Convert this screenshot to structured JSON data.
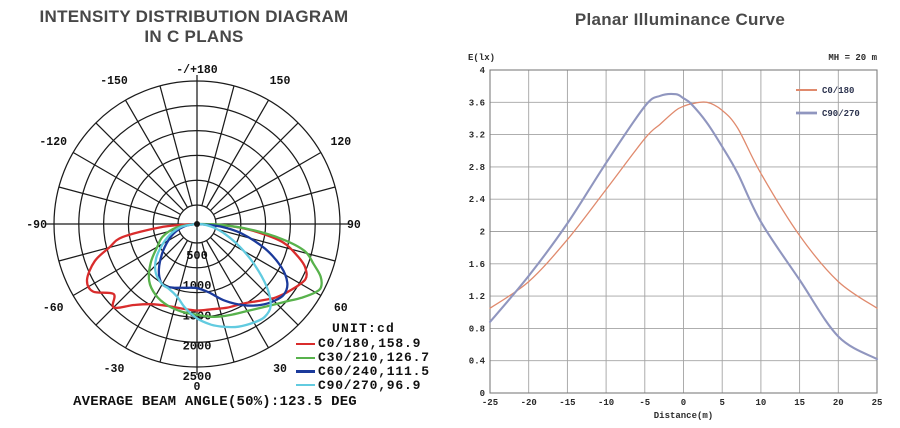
{
  "chart_data": [
    {
      "type": "polar-line",
      "title_line1": "INTENSITY DISTRIBUTION DIAGRAM",
      "title_line2": "IN C PLANS",
      "unit_label": "UNIT:cd",
      "footer": "AVERAGE BEAM ANGLE(50%):123.5 DEG",
      "radial_unit": "cd",
      "ring_values": [
        500,
        1000,
        1500,
        2000,
        2500
      ],
      "angle_labels": [
        {
          "a": 180,
          "t": "-/+180"
        },
        {
          "a": -150,
          "t": "-150"
        },
        {
          "a": 150,
          "t": "150"
        },
        {
          "a": -120,
          "t": "-120"
        },
        {
          "a": 120,
          "t": "120"
        },
        {
          "a": -90,
          "t": "-90"
        },
        {
          "a": 90,
          "t": "90"
        },
        {
          "a": -60,
          "t": "-60"
        },
        {
          "a": 60,
          "t": "60"
        },
        {
          "a": -30,
          "t": "-30"
        },
        {
          "a": 30,
          "t": "30"
        },
        {
          "a": 0,
          "t": "0"
        }
      ],
      "series": [
        {
          "name": "C0/180",
          "beam_angle_deg": 158.9,
          "label": "C0/180,158.9",
          "color": "#d92c2c",
          "points": [
            [
              -90,
              30
            ],
            [
              -85,
              600
            ],
            [
              -80,
              1250
            ],
            [
              -75,
              1500
            ],
            [
              -70,
              1800
            ],
            [
              -63,
              2040
            ],
            [
              -57,
              2050
            ],
            [
              -50,
              1800
            ],
            [
              -45,
              1950
            ],
            [
              -38,
              1700
            ],
            [
              -30,
              1530
            ],
            [
              -20,
              1440
            ],
            [
              -10,
              1420
            ],
            [
              0,
              1430
            ],
            [
              10,
              1430
            ],
            [
              20,
              1470
            ],
            [
              30,
              1520
            ],
            [
              40,
              1650
            ],
            [
              47,
              1780
            ],
            [
              55,
              1900
            ],
            [
              63,
              2010
            ],
            [
              68,
              1930
            ],
            [
              72,
              1760
            ],
            [
              78,
              1450
            ],
            [
              83,
              950
            ],
            [
              87,
              500
            ],
            [
              90,
              30
            ]
          ]
        },
        {
          "name": "C30/210",
          "beam_angle_deg": 126.7,
          "label": "C30/210,126.7",
          "color": "#58b24c",
          "points": [
            [
              -90,
              20
            ],
            [
              -80,
              350
            ],
            [
              -70,
              600
            ],
            [
              -60,
              760
            ],
            [
              -50,
              1000
            ],
            [
              -40,
              1230
            ],
            [
              -30,
              1360
            ],
            [
              -20,
              1430
            ],
            [
              -10,
              1470
            ],
            [
              0,
              1500
            ],
            [
              10,
              1560
            ],
            [
              20,
              1600
            ],
            [
              30,
              1660
            ],
            [
              40,
              1780
            ],
            [
              48,
              1930
            ],
            [
              55,
              2120
            ],
            [
              60,
              2260
            ],
            [
              63,
              2300
            ],
            [
              67,
              2220
            ],
            [
              71,
              2040
            ],
            [
              76,
              1830
            ],
            [
              80,
              1420
            ],
            [
              84,
              900
            ],
            [
              88,
              400
            ],
            [
              90,
              30
            ]
          ]
        },
        {
          "name": "C60/240",
          "beam_angle_deg": 111.5,
          "label": "C60/240,111.5",
          "color": "#1b3a9b",
          "points": [
            [
              -90,
              20
            ],
            [
              -80,
              200
            ],
            [
              -70,
              380
            ],
            [
              -60,
              550
            ],
            [
              -50,
              750
            ],
            [
              -40,
              980
            ],
            [
              -32,
              1130
            ],
            [
              -27,
              1155
            ],
            [
              -20,
              1120
            ],
            [
              -10,
              1070
            ],
            [
              0,
              1060
            ],
            [
              10,
              1150
            ],
            [
              20,
              1350
            ],
            [
              30,
              1550
            ],
            [
              38,
              1700
            ],
            [
              45,
              1800
            ],
            [
              51,
              1850
            ],
            [
              57,
              1780
            ],
            [
              63,
              1560
            ],
            [
              70,
              1200
            ],
            [
              78,
              750
            ],
            [
              84,
              380
            ],
            [
              90,
              20
            ]
          ]
        },
        {
          "name": "C90/270",
          "beam_angle_deg": 96.9,
          "label": "C90/270,96.9",
          "color": "#62cbe0",
          "points": [
            [
              -90,
              20
            ],
            [
              -80,
              250
            ],
            [
              -70,
              450
            ],
            [
              -60,
              650
            ],
            [
              -50,
              880
            ],
            [
              -40,
              1060
            ],
            [
              -30,
              1150
            ],
            [
              -24,
              1165
            ],
            [
              -15,
              1250
            ],
            [
              -8,
              1400
            ],
            [
              0,
              1560
            ],
            [
              8,
              1680
            ],
            [
              15,
              1760
            ],
            [
              22,
              1830
            ],
            [
              30,
              1880
            ],
            [
              36,
              1900
            ],
            [
              42,
              1820
            ],
            [
              48,
              1550
            ],
            [
              55,
              1150
            ],
            [
              62,
              800
            ],
            [
              70,
              500
            ],
            [
              78,
              280
            ],
            [
              85,
              120
            ],
            [
              90,
              10
            ]
          ]
        }
      ]
    },
    {
      "type": "line",
      "title": "Planar Illuminance Curve",
      "ylabel": "E(lx)",
      "xlabel": "Distance(m)",
      "annotation": "MH = 20 m",
      "xlim": [
        -25,
        25
      ],
      "ylim": [
        0,
        4
      ],
      "x_ticks": [
        -25,
        -20,
        -15,
        -10,
        -5,
        0,
        5,
        10,
        15,
        20,
        25
      ],
      "y_ticks": [
        0,
        0.4,
        0.8,
        1.2,
        1.6,
        2,
        2.4,
        2.8,
        3.2,
        3.6,
        4
      ],
      "grid": true,
      "legend_position": "top-right",
      "x": [
        -25,
        -20,
        -15,
        -10,
        -5,
        -3,
        -1,
        0,
        1,
        3,
        5,
        7,
        10,
        15,
        20,
        25
      ],
      "series": [
        {
          "name": "C0/180",
          "color": "#e08a6d",
          "width": 1.3,
          "values": [
            1.05,
            1.38,
            1.9,
            2.52,
            3.15,
            3.33,
            3.5,
            3.55,
            3.58,
            3.6,
            3.5,
            3.28,
            2.72,
            1.95,
            1.38,
            1.05
          ]
        },
        {
          "name": "C90/270",
          "color": "#9096bf",
          "width": 2.1,
          "values": [
            0.88,
            1.45,
            2.1,
            2.85,
            3.55,
            3.68,
            3.7,
            3.65,
            3.58,
            3.35,
            3.05,
            2.72,
            2.12,
            1.4,
            0.7,
            0.42
          ]
        }
      ]
    }
  ]
}
